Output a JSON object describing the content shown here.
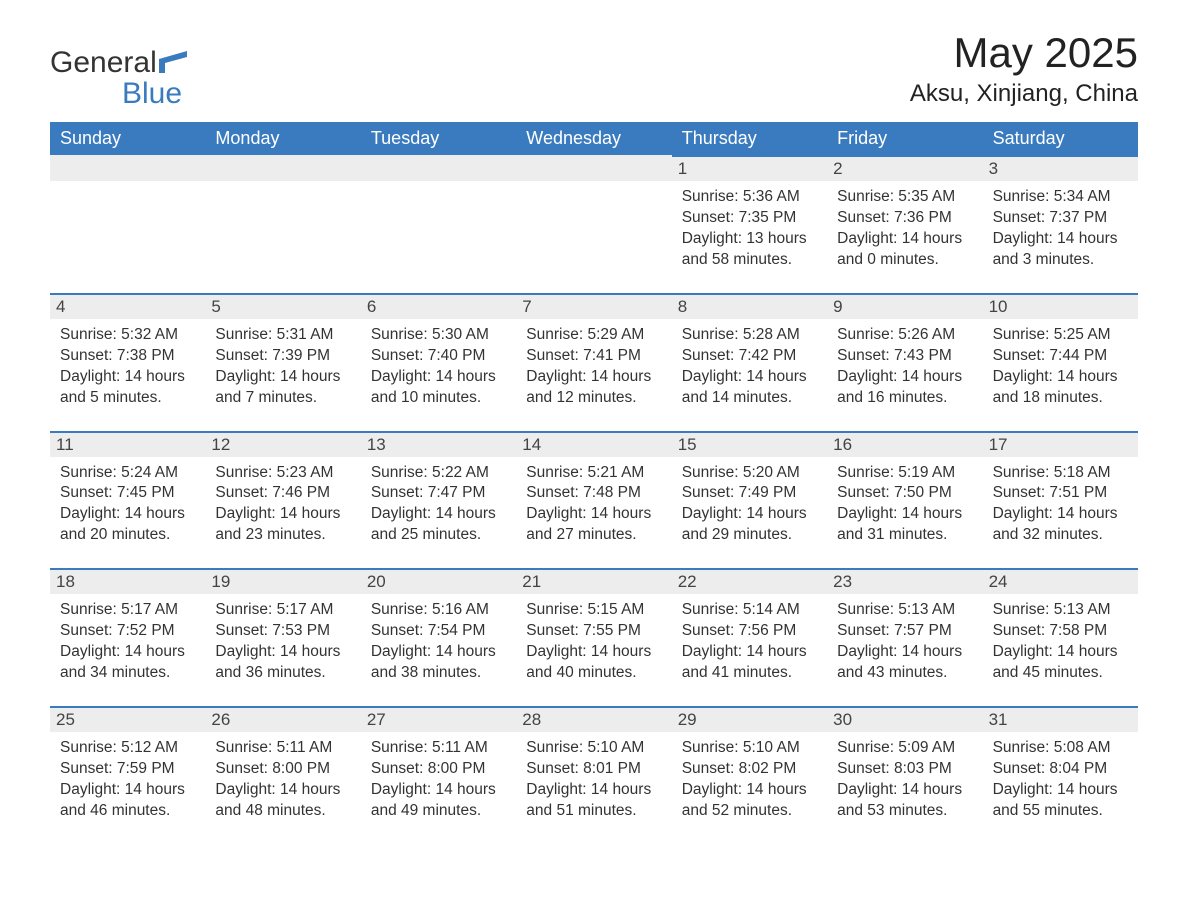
{
  "logo": {
    "text1": "General",
    "text2": "Blue"
  },
  "header": {
    "month_title": "May 2025",
    "location": "Aksu, Xinjiang, China"
  },
  "colors": {
    "header_bg": "#3a7bbf",
    "header_fg": "#ffffff",
    "daynum_bg": "#ededed",
    "border_top": "#3a7bbf",
    "text": "#333333",
    "page_bg": "#ffffff"
  },
  "layout": {
    "columns": 7,
    "rows": 5,
    "day_num_fontsize": 17,
    "detail_fontsize": 15.5,
    "weekday_fontsize": 18,
    "title_fontsize": 42,
    "location_fontsize": 24
  },
  "weekdays": [
    "Sunday",
    "Monday",
    "Tuesday",
    "Wednesday",
    "Thursday",
    "Friday",
    "Saturday"
  ],
  "weeks": [
    [
      null,
      null,
      null,
      null,
      {
        "n": "1",
        "sr": "Sunrise: 5:36 AM",
        "ss": "Sunset: 7:35 PM",
        "dl": "Daylight: 13 hours and 58 minutes."
      },
      {
        "n": "2",
        "sr": "Sunrise: 5:35 AM",
        "ss": "Sunset: 7:36 PM",
        "dl": "Daylight: 14 hours and 0 minutes."
      },
      {
        "n": "3",
        "sr": "Sunrise: 5:34 AM",
        "ss": "Sunset: 7:37 PM",
        "dl": "Daylight: 14 hours and 3 minutes."
      }
    ],
    [
      {
        "n": "4",
        "sr": "Sunrise: 5:32 AM",
        "ss": "Sunset: 7:38 PM",
        "dl": "Daylight: 14 hours and 5 minutes."
      },
      {
        "n": "5",
        "sr": "Sunrise: 5:31 AM",
        "ss": "Sunset: 7:39 PM",
        "dl": "Daylight: 14 hours and 7 minutes."
      },
      {
        "n": "6",
        "sr": "Sunrise: 5:30 AM",
        "ss": "Sunset: 7:40 PM",
        "dl": "Daylight: 14 hours and 10 minutes."
      },
      {
        "n": "7",
        "sr": "Sunrise: 5:29 AM",
        "ss": "Sunset: 7:41 PM",
        "dl": "Daylight: 14 hours and 12 minutes."
      },
      {
        "n": "8",
        "sr": "Sunrise: 5:28 AM",
        "ss": "Sunset: 7:42 PM",
        "dl": "Daylight: 14 hours and 14 minutes."
      },
      {
        "n": "9",
        "sr": "Sunrise: 5:26 AM",
        "ss": "Sunset: 7:43 PM",
        "dl": "Daylight: 14 hours and 16 minutes."
      },
      {
        "n": "10",
        "sr": "Sunrise: 5:25 AM",
        "ss": "Sunset: 7:44 PM",
        "dl": "Daylight: 14 hours and 18 minutes."
      }
    ],
    [
      {
        "n": "11",
        "sr": "Sunrise: 5:24 AM",
        "ss": "Sunset: 7:45 PM",
        "dl": "Daylight: 14 hours and 20 minutes."
      },
      {
        "n": "12",
        "sr": "Sunrise: 5:23 AM",
        "ss": "Sunset: 7:46 PM",
        "dl": "Daylight: 14 hours and 23 minutes."
      },
      {
        "n": "13",
        "sr": "Sunrise: 5:22 AM",
        "ss": "Sunset: 7:47 PM",
        "dl": "Daylight: 14 hours and 25 minutes."
      },
      {
        "n": "14",
        "sr": "Sunrise: 5:21 AM",
        "ss": "Sunset: 7:48 PM",
        "dl": "Daylight: 14 hours and 27 minutes."
      },
      {
        "n": "15",
        "sr": "Sunrise: 5:20 AM",
        "ss": "Sunset: 7:49 PM",
        "dl": "Daylight: 14 hours and 29 minutes."
      },
      {
        "n": "16",
        "sr": "Sunrise: 5:19 AM",
        "ss": "Sunset: 7:50 PM",
        "dl": "Daylight: 14 hours and 31 minutes."
      },
      {
        "n": "17",
        "sr": "Sunrise: 5:18 AM",
        "ss": "Sunset: 7:51 PM",
        "dl": "Daylight: 14 hours and 32 minutes."
      }
    ],
    [
      {
        "n": "18",
        "sr": "Sunrise: 5:17 AM",
        "ss": "Sunset: 7:52 PM",
        "dl": "Daylight: 14 hours and 34 minutes."
      },
      {
        "n": "19",
        "sr": "Sunrise: 5:17 AM",
        "ss": "Sunset: 7:53 PM",
        "dl": "Daylight: 14 hours and 36 minutes."
      },
      {
        "n": "20",
        "sr": "Sunrise: 5:16 AM",
        "ss": "Sunset: 7:54 PM",
        "dl": "Daylight: 14 hours and 38 minutes."
      },
      {
        "n": "21",
        "sr": "Sunrise: 5:15 AM",
        "ss": "Sunset: 7:55 PM",
        "dl": "Daylight: 14 hours and 40 minutes."
      },
      {
        "n": "22",
        "sr": "Sunrise: 5:14 AM",
        "ss": "Sunset: 7:56 PM",
        "dl": "Daylight: 14 hours and 41 minutes."
      },
      {
        "n": "23",
        "sr": "Sunrise: 5:13 AM",
        "ss": "Sunset: 7:57 PM",
        "dl": "Daylight: 14 hours and 43 minutes."
      },
      {
        "n": "24",
        "sr": "Sunrise: 5:13 AM",
        "ss": "Sunset: 7:58 PM",
        "dl": "Daylight: 14 hours and 45 minutes."
      }
    ],
    [
      {
        "n": "25",
        "sr": "Sunrise: 5:12 AM",
        "ss": "Sunset: 7:59 PM",
        "dl": "Daylight: 14 hours and 46 minutes."
      },
      {
        "n": "26",
        "sr": "Sunrise: 5:11 AM",
        "ss": "Sunset: 8:00 PM",
        "dl": "Daylight: 14 hours and 48 minutes."
      },
      {
        "n": "27",
        "sr": "Sunrise: 5:11 AM",
        "ss": "Sunset: 8:00 PM",
        "dl": "Daylight: 14 hours and 49 minutes."
      },
      {
        "n": "28",
        "sr": "Sunrise: 5:10 AM",
        "ss": "Sunset: 8:01 PM",
        "dl": "Daylight: 14 hours and 51 minutes."
      },
      {
        "n": "29",
        "sr": "Sunrise: 5:10 AM",
        "ss": "Sunset: 8:02 PM",
        "dl": "Daylight: 14 hours and 52 minutes."
      },
      {
        "n": "30",
        "sr": "Sunrise: 5:09 AM",
        "ss": "Sunset: 8:03 PM",
        "dl": "Daylight: 14 hours and 53 minutes."
      },
      {
        "n": "31",
        "sr": "Sunrise: 5:08 AM",
        "ss": "Sunset: 8:04 PM",
        "dl": "Daylight: 14 hours and 55 minutes."
      }
    ]
  ]
}
